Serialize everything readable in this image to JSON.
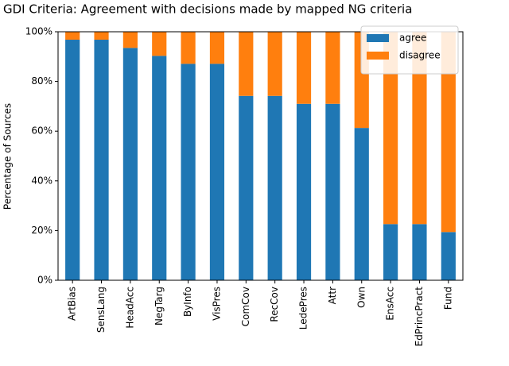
{
  "chart_data": {
    "type": "stacked-bar",
    "title": "GDI Criteria: Agreement with decisions made by mapped NG criteria",
    "y_label": "Percentage of Sources",
    "categories": [
      "ArtBias",
      "SensLang",
      "HeadAcc",
      "NegTarg",
      "ByInfo",
      "VisPres",
      "ComCov",
      "RecCov",
      "LedePres",
      "Attr",
      "Own",
      "EnsAcc",
      "EdPrincPract",
      "Fund"
    ],
    "series": [
      {
        "name": "agree",
        "color": "#1f77b4",
        "values": [
          96.8,
          96.8,
          93.5,
          90.3,
          87.1,
          87.1,
          74.2,
          74.2,
          71.0,
          71.0,
          61.3,
          22.6,
          22.6,
          19.4
        ]
      },
      {
        "name": "disagree",
        "color": "#ff7f0e",
        "values": [
          3.2,
          3.2,
          6.5,
          9.7,
          12.9,
          12.9,
          25.8,
          25.8,
          29.0,
          29.0,
          38.7,
          77.4,
          77.4,
          80.6
        ]
      }
    ],
    "ylim": [
      0,
      100
    ],
    "yticks": [
      {
        "value": 0,
        "label": "0%"
      },
      {
        "value": 20,
        "label": "20%"
      },
      {
        "value": 40,
        "label": "40%"
      },
      {
        "value": 60,
        "label": "60%"
      },
      {
        "value": 80,
        "label": "80%"
      },
      {
        "value": 100,
        "label": "100%"
      }
    ],
    "legend": "upper right"
  }
}
